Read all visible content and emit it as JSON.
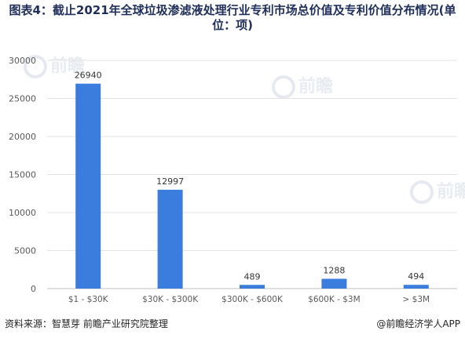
{
  "title": "图表4：截止2021年全球垃圾渗滤液处理行业专利市场总价值及专利价值分布情况(单位：项)",
  "source": "资料来源：智慧芽 前瞻产业研究院整理",
  "credit": "@前瞻经济学人APP",
  "watermark": "前瞻",
  "colors": {
    "bar": "#3b7ddd",
    "axis": "#bfbfbf",
    "grid": "#e3e3e3",
    "text": "#595959",
    "title": "#1f2f5a"
  },
  "chart_data": {
    "type": "bar",
    "title": "图表4：截止2021年全球垃圾渗滤液处理行业专利市场总价值及专利价值分布情况(单位：项)",
    "categories": [
      "$1 - $30K",
      "$30K - $300K",
      "$300K - $600K",
      "$600K - $3M",
      "> $3M"
    ],
    "values": [
      26940,
      12997,
      489,
      1288,
      494
    ],
    "ylim": [
      0,
      30000
    ],
    "yticks": [
      0,
      5000,
      10000,
      15000,
      20000,
      25000,
      30000
    ],
    "grid": true,
    "legend": "none",
    "data_labels": true
  }
}
